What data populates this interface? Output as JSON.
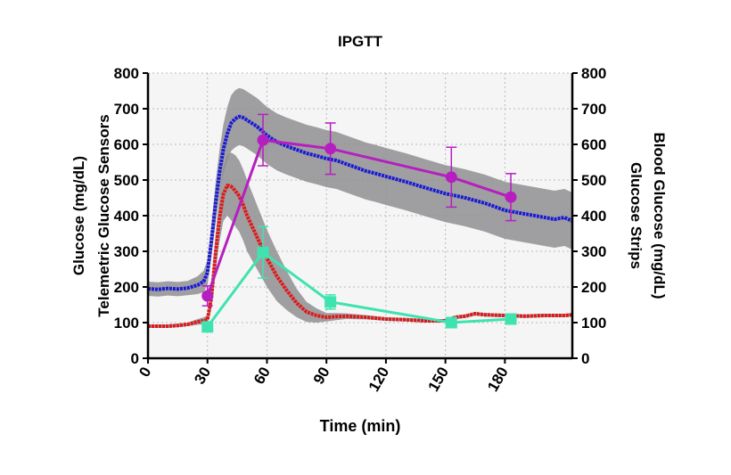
{
  "chart_data": {
    "type": "line",
    "title": "IPGTT",
    "xlabel": "Time (min)",
    "ylabel_left": [
      "Glucose (mg/dL)",
      "Telemetric Glucose Sensors"
    ],
    "ylabel_right": [
      "Blood Glucose (mg/dL)",
      "Glucose Strips"
    ],
    "xlim": [
      0,
      214
    ],
    "ylim": [
      0,
      800
    ],
    "x_ticks": [
      0,
      30,
      60,
      90,
      120,
      150,
      180
    ],
    "y_ticks": [
      0,
      100,
      200,
      300,
      400,
      500,
      600,
      700,
      800
    ],
    "grid": true,
    "legend": "none",
    "colors": {
      "blue_sensor": "#1a1ad6",
      "red_sensor": "#e01818",
      "magenta_strip": "#b51fbf",
      "teal_strip": "#3fe3b0",
      "band": "#8f8f92",
      "grid": "#b9b9b9"
    },
    "series": [
      {
        "color": "blue_sensor",
        "kind": "sensor_trace",
        "x": [
          0,
          5,
          10,
          15,
          20,
          25,
          28,
          30,
          32,
          34,
          36,
          38,
          40,
          42,
          44,
          46,
          48,
          50,
          55,
          60,
          65,
          70,
          75,
          80,
          85,
          90,
          95,
          100,
          105,
          110,
          115,
          120,
          130,
          140,
          150,
          160,
          170,
          180,
          190,
          200,
          205,
          210,
          214
        ],
        "values": [
          195,
          193,
          196,
          194,
          197,
          205,
          215,
          240,
          330,
          430,
          520,
          585,
          630,
          660,
          672,
          678,
          675,
          668,
          650,
          625,
          607,
          595,
          585,
          575,
          568,
          560,
          555,
          545,
          535,
          525,
          518,
          510,
          495,
          478,
          462,
          450,
          435,
          415,
          405,
          395,
          390,
          395,
          385
        ],
        "band_halfwidth": [
          20,
          20,
          20,
          20,
          20,
          25,
          30,
          35,
          45,
          55,
          62,
          70,
          75,
          78,
          80,
          80,
          80,
          80,
          80,
          80,
          80,
          80,
          80,
          80,
          80,
          80,
          80,
          80,
          80,
          80,
          80,
          80,
          80,
          80,
          80,
          80,
          80,
          80,
          80,
          80,
          80,
          80,
          80
        ]
      },
      {
        "color": "red_sensor",
        "kind": "sensor_trace",
        "x": [
          0,
          5,
          10,
          15,
          20,
          25,
          28,
          30,
          32,
          34,
          36,
          38,
          40,
          42,
          44,
          46,
          48,
          50,
          55,
          60,
          65,
          70,
          75,
          80,
          85,
          90,
          95,
          100,
          110,
          120,
          130,
          140,
          150,
          155,
          160,
          165,
          170,
          180,
          190,
          200,
          210,
          214
        ],
        "values": [
          90,
          90,
          90,
          92,
          95,
          102,
          105,
          108,
          170,
          290,
          390,
          460,
          485,
          482,
          470,
          455,
          430,
          400,
          340,
          280,
          230,
          190,
          155,
          130,
          120,
          115,
          117,
          118,
          115,
          110,
          108,
          105,
          105,
          115,
          118,
          125,
          122,
          120,
          118,
          120,
          120,
          122
        ],
        "band_halfwidth": [
          5,
          5,
          5,
          5,
          5,
          8,
          10,
          12,
          30,
          50,
          65,
          75,
          85,
          95,
          100,
          100,
          100,
          100,
          90,
          80,
          70,
          55,
          40,
          28,
          20,
          12,
          10,
          8,
          6,
          5,
          5,
          5,
          5,
          5,
          5,
          5,
          5,
          5,
          5,
          5,
          5,
          5
        ]
      },
      {
        "color": "magenta_strip",
        "kind": "strip_points",
        "marker": "circle",
        "x": [
          30,
          58,
          92,
          153,
          183
        ],
        "values": [
          175,
          612,
          588,
          508,
          452
        ],
        "error": [
          28,
          72,
          72,
          84,
          66
        ]
      },
      {
        "color": "teal_strip",
        "kind": "strip_points",
        "marker": "square",
        "x": [
          30,
          58,
          92,
          153,
          183
        ],
        "values": [
          88,
          297,
          158,
          100,
          110
        ],
        "error": [
          0,
          72,
          20,
          0,
          0
        ]
      }
    ]
  }
}
